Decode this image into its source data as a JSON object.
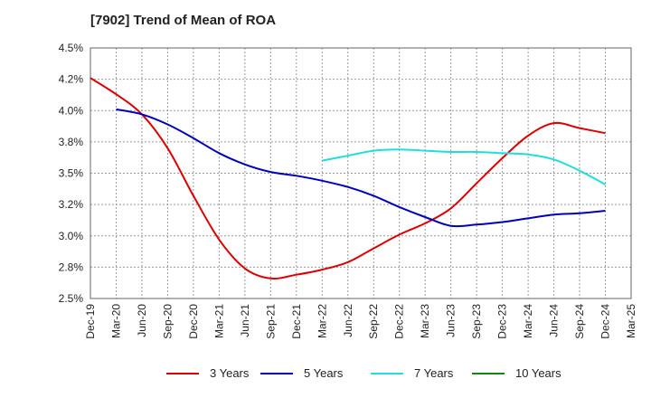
{
  "chart_data": {
    "type": "line",
    "title": "[7902]  Trend of Mean of ROA",
    "xlabel": "",
    "ylabel": "",
    "ylim": [
      2.5,
      4.5
    ],
    "yticks": [
      2.5,
      2.75,
      3.0,
      3.25,
      3.5,
      3.75,
      4.0,
      4.25,
      4.5
    ],
    "ytick_labels": [
      "2.5%",
      "2.8%",
      "3.0%",
      "3.2%",
      "3.5%",
      "3.8%",
      "4.0%",
      "4.2%",
      "4.5%"
    ],
    "categories": [
      "Dec-19",
      "Mar-20",
      "Jun-20",
      "Sep-20",
      "Dec-20",
      "Mar-21",
      "Jun-21",
      "Sep-21",
      "Dec-21",
      "Mar-22",
      "Jun-22",
      "Sep-22",
      "Dec-22",
      "Mar-23",
      "Jun-23",
      "Sep-23",
      "Dec-23",
      "Mar-24",
      "Jun-24",
      "Sep-24",
      "Dec-24",
      "Mar-25"
    ],
    "series": [
      {
        "name": "3 Years",
        "color": "#dd0000",
        "values": [
          4.26,
          4.13,
          3.97,
          3.7,
          3.32,
          2.97,
          2.74,
          2.66,
          2.69,
          2.73,
          2.79,
          2.9,
          3.01,
          3.1,
          3.22,
          3.42,
          3.62,
          3.8,
          3.9,
          3.86,
          3.82,
          null
        ]
      },
      {
        "name": "5 Years",
        "color": "#0000bb",
        "values": [
          null,
          4.01,
          3.97,
          3.89,
          3.78,
          3.66,
          3.57,
          3.51,
          3.48,
          3.44,
          3.39,
          3.32,
          3.23,
          3.15,
          3.08,
          3.09,
          3.11,
          3.14,
          3.17,
          3.18,
          3.2,
          null
        ]
      },
      {
        "name": "7 Years",
        "color": "#22dddd",
        "values": [
          null,
          null,
          null,
          null,
          null,
          null,
          null,
          null,
          null,
          3.6,
          3.64,
          3.68,
          3.69,
          3.68,
          3.67,
          3.67,
          3.66,
          3.65,
          3.61,
          3.52,
          3.41,
          null
        ]
      },
      {
        "name": "10 Years",
        "color": "#118811",
        "values": [
          null,
          null,
          null,
          null,
          null,
          null,
          null,
          null,
          null,
          null,
          null,
          null,
          null,
          null,
          null,
          null,
          null,
          null,
          null,
          null,
          null,
          null
        ]
      }
    ],
    "grid": true,
    "legend": "bottom"
  }
}
